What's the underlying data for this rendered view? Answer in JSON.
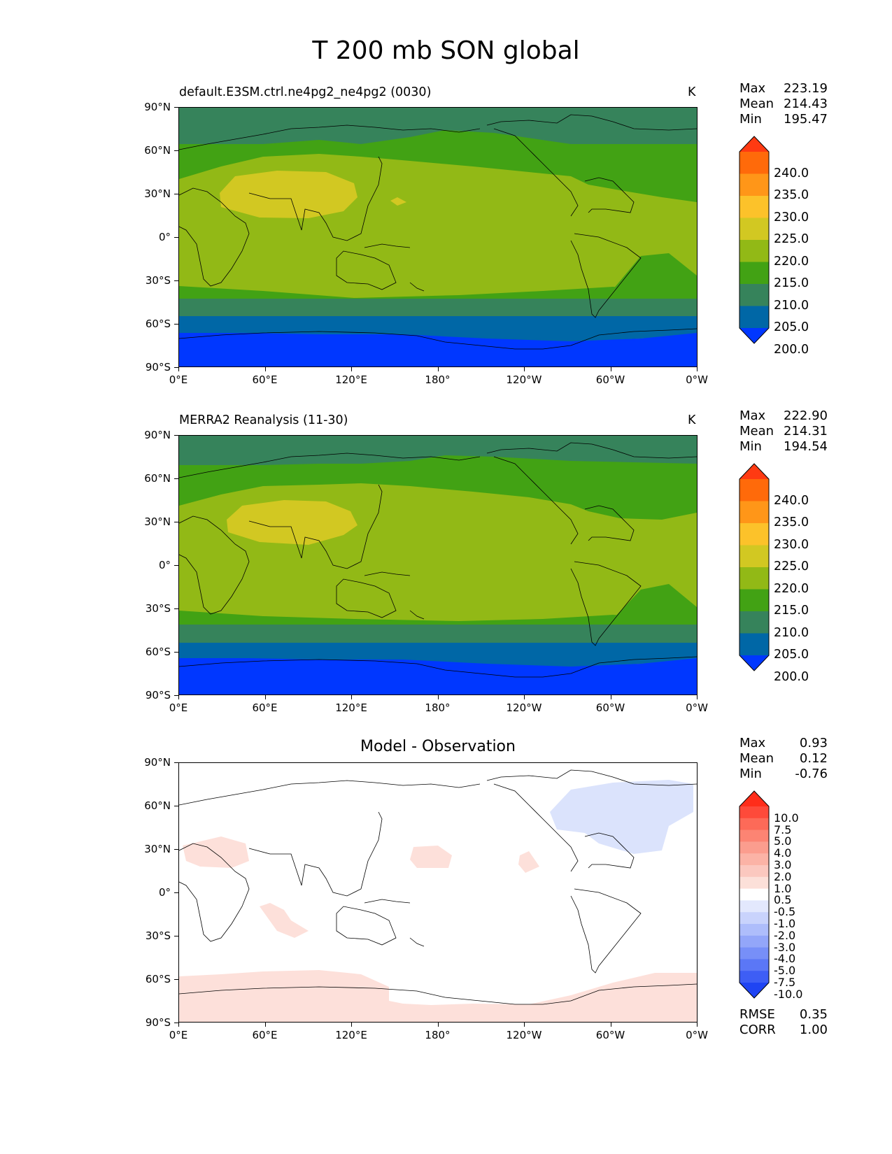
{
  "title": "T 200 mb SON global",
  "lat_ticks": [
    "90°N",
    "60°N",
    "30°N",
    "0°",
    "30°S",
    "60°S",
    "90°S"
  ],
  "lon_ticks": [
    "0°E",
    "60°E",
    "120°E",
    "180°",
    "120°W",
    "60°W",
    "0°W"
  ],
  "panels": [
    {
      "id": "test",
      "subtitle_left": "default.E3SM.ctrl.ne4pg2_ne4pg2 (0030)",
      "units": "K",
      "stats": {
        "max_label": "Max",
        "max": "223.19",
        "mean_label": "Mean",
        "mean": "214.43",
        "min_label": "Min",
        "min": "195.47"
      },
      "colorbar": {
        "levels": [
          "240.0",
          "235.0",
          "230.0",
          "225.0",
          "220.0",
          "215.0",
          "210.0",
          "205.0",
          "200.0"
        ],
        "colors_top_to_bottom": [
          "#ff3a12",
          "#ff6a0a",
          "#ff9618",
          "#fcc22a",
          "#d2c822",
          "#92b916",
          "#42a214",
          "#36835b",
          "#0067a6",
          "#0037ff"
        ]
      },
      "field_colors": {
        "polar_n": "#36835b",
        "band_210": "#42a214",
        "band_215": "#92b916",
        "band_220": "#d2c822",
        "band_205": "#0067a6",
        "polar_s": "#0037ff"
      }
    },
    {
      "id": "ref",
      "subtitle_left": "MERRA2 Reanalysis (11-30)",
      "units": "K",
      "stats": {
        "max_label": "Max",
        "max": "222.90",
        "mean_label": "Mean",
        "mean": "214.31",
        "min_label": "Min",
        "min": "194.54"
      },
      "colorbar": {
        "levels": [
          "240.0",
          "235.0",
          "230.0",
          "225.0",
          "220.0",
          "215.0",
          "210.0",
          "205.0",
          "200.0"
        ],
        "colors_top_to_bottom": [
          "#ff3a12",
          "#ff6a0a",
          "#ff9618",
          "#fcc22a",
          "#d2c822",
          "#92b916",
          "#42a214",
          "#36835b",
          "#0067a6",
          "#0037ff"
        ]
      },
      "field_colors": {
        "polar_n": "#36835b",
        "band_210": "#42a214",
        "band_215": "#92b916",
        "band_220": "#d2c822",
        "band_205": "#0067a6",
        "polar_s": "#0037ff"
      }
    },
    {
      "id": "diff",
      "subtitle_center": "Model - Observation",
      "stats": {
        "max_label": "Max",
        "max": "0.93",
        "mean_label": "Mean",
        "mean": "0.12",
        "min_label": "Min",
        "min": "-0.76"
      },
      "colorbar": {
        "levels": [
          "10.0",
          "7.5",
          "5.0",
          "4.0",
          "3.0",
          "2.0",
          "1.0",
          "0.5",
          "-0.5",
          "-1.0",
          "-2.0",
          "-3.0",
          "-4.0",
          "-5.0",
          "-7.5",
          "-10.0"
        ],
        "colors_top_to_bottom": [
          "#ff2d1a",
          "#fe4a3a",
          "#fd6a58",
          "#fc8473",
          "#fb9d8e",
          "#fbb3a6",
          "#fbc8bf",
          "#fce0d9",
          "#ffffff",
          "#e3e8fd",
          "#c9d3fc",
          "#aebdfb",
          "#93a6f9",
          "#778ff8",
          "#5b77f6",
          "#3e5ef5",
          "#1f44f3"
        ]
      },
      "rmse_label": "RMSE",
      "rmse": "0.35",
      "corr_label": "CORR",
      "corr": "1.00",
      "field_colors": {
        "positive": "#fde0da",
        "negative": "#dbe3fc"
      }
    }
  ]
}
